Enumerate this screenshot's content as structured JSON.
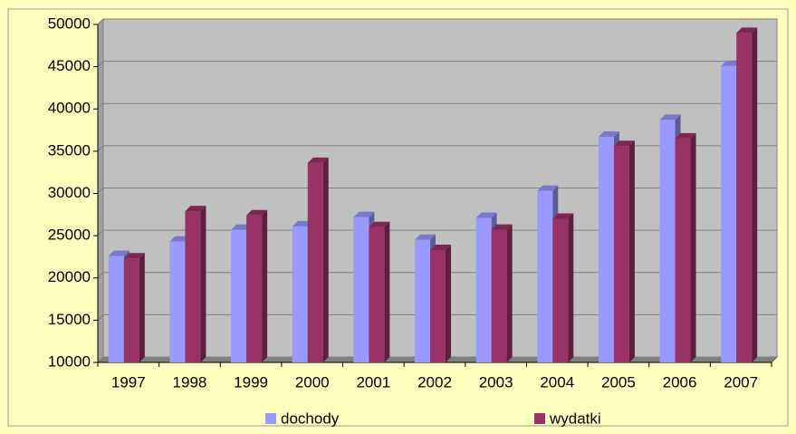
{
  "chart_data": {
    "type": "bar3d",
    "categories": [
      "1997",
      "1998",
      "1999",
      "2000",
      "2001",
      "2002",
      "2003",
      "2004",
      "2005",
      "2006",
      "2007"
    ],
    "series": [
      {
        "name": "dochody",
        "color": "#9999ff",
        "values": [
          22600,
          24300,
          25700,
          26100,
          27200,
          24500,
          27100,
          30300,
          36700,
          38700,
          45100
        ]
      },
      {
        "name": "wydatki",
        "color": "#993366",
        "values": [
          22300,
          27900,
          27400,
          33600,
          26000,
          23300,
          25700,
          27000,
          35600,
          36500,
          49000
        ]
      }
    ],
    "ylim": [
      10000,
      50000
    ],
    "yticks": [
      10000,
      15000,
      20000,
      25000,
      30000,
      35000,
      40000,
      45000,
      50000
    ],
    "grid": true,
    "legend": "bottom"
  }
}
